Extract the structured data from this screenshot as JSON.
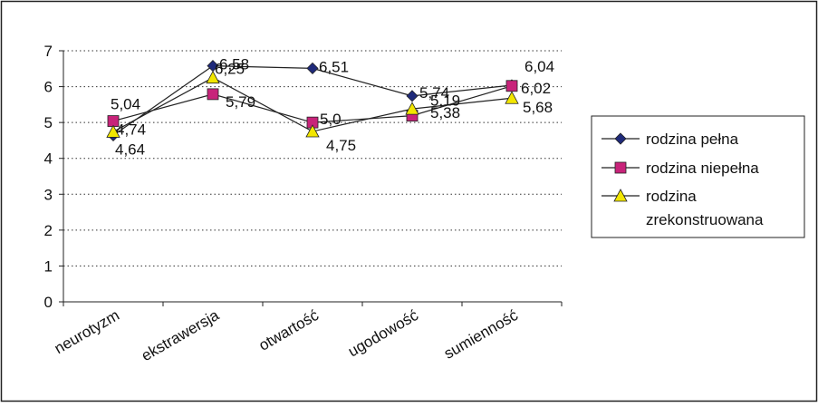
{
  "chart_data": {
    "type": "line",
    "categories": [
      "neurotyzm",
      "ekstrawersja",
      "otwartość",
      "ugodowość",
      "sumienność"
    ],
    "ylim": [
      0,
      7
    ],
    "y_ticks": [
      "0",
      "1",
      "2",
      "3",
      "4",
      "5",
      "6",
      "7"
    ],
    "grid": "horizontal dotted",
    "legend_position": "right",
    "series": [
      {
        "name": "rodzina pełna",
        "values": [
          4.64,
          6.58,
          6.51,
          5.74,
          6.04
        ],
        "labels": [
          "4,64",
          "6,58",
          "6,51",
          "5,74",
          "6,04"
        ],
        "color": "#1f2a7a",
        "marker": "diamond"
      },
      {
        "name": "rodzina niepełna",
        "values": [
          5.04,
          5.79,
          5.0,
          5.19,
          6.02
        ],
        "labels": [
          "5,04",
          "5,79",
          "5,0",
          "5,19",
          "6,02"
        ],
        "color": "#c8237a",
        "marker": "square"
      },
      {
        "name": "rodzina zrekonstruowana",
        "legend_lines": [
          "rodzina",
          "zrekonstruowana"
        ],
        "values": [
          4.74,
          6.25,
          4.75,
          5.38,
          5.68
        ],
        "labels": [
          "4,74",
          "6,25",
          "4,75",
          "5,38",
          "5,68"
        ],
        "color": "#f2e600",
        "marker": "triangle"
      }
    ]
  }
}
